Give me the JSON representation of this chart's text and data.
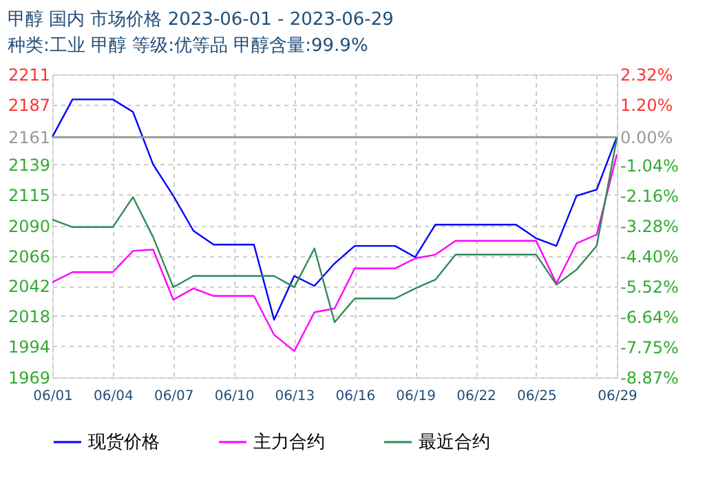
{
  "chart_data": {
    "type": "line",
    "title": "甲醇 国内 市场价格 2023-06-01 - 2023-06-29",
    "subtitle": "种类:工业 甲醇 等级:优等品 甲醇含量:99.9%",
    "x": [
      "2023-06-01",
      "2023-06-02",
      "2023-06-03",
      "2023-06-04",
      "2023-06-05",
      "2023-06-06",
      "2023-06-07",
      "2023-06-08",
      "2023-06-09",
      "2023-06-10",
      "2023-06-11",
      "2023-06-12",
      "2023-06-13",
      "2023-06-14",
      "2023-06-15",
      "2023-06-16",
      "2023-06-17",
      "2023-06-18",
      "2023-06-19",
      "2023-06-20",
      "2023-06-21",
      "2023-06-22",
      "2023-06-23",
      "2023-06-24",
      "2023-06-25",
      "2023-06-26",
      "2023-06-27",
      "2023-06-28",
      "2023-06-29"
    ],
    "series": [
      {
        "name": "现货价格",
        "color": "#0000ff",
        "values": [
          2161,
          2191,
          2191,
          2191,
          2181,
          2139,
          2114,
          2086,
          2075,
          2075,
          2075,
          2015,
          2050,
          2042,
          2060,
          2074,
          2074,
          2074,
          2065,
          2091,
          2091,
          2091,
          2091,
          2091,
          2080,
          2074,
          2114,
          2119,
          2161
        ]
      },
      {
        "name": "主力合约",
        "color": "#ff00ff",
        "values": [
          2045,
          2053,
          2053,
          2053,
          2070,
          2071,
          2031,
          2040,
          2034,
          2034,
          2034,
          2003,
          1990,
          2021,
          2024,
          2056,
          2056,
          2056,
          2064,
          2067,
          2078,
          2078,
          2078,
          2078,
          2078,
          2044,
          2076,
          2083,
          2147
        ]
      },
      {
        "name": "最近合约",
        "color": "#2e8b57",
        "values": [
          2095,
          2089,
          2089,
          2089,
          2113,
          2081,
          2041,
          2050,
          2050,
          2050,
          2050,
          2050,
          2041,
          2072,
          2013,
          2032,
          2032,
          2032,
          2040,
          2047,
          2067,
          2067,
          2067,
          2067,
          2067,
          2043,
          2055,
          2074,
          2160
        ]
      }
    ],
    "xlim": [
      "2023-06-01",
      "2023-06-29"
    ],
    "xticks": [
      {
        "value": "2023-06-01",
        "label": "06/01"
      },
      {
        "value": "2023-06-04",
        "label": "06/04"
      },
      {
        "value": "2023-06-07",
        "label": "06/07"
      },
      {
        "value": "2023-06-10",
        "label": "06/10"
      },
      {
        "value": "2023-06-13",
        "label": "06/13"
      },
      {
        "value": "2023-06-16",
        "label": "06/16"
      },
      {
        "value": "2023-06-19",
        "label": "06/19"
      },
      {
        "value": "2023-06-22",
        "label": "06/22"
      },
      {
        "value": "2023-06-25",
        "label": "06/25"
      },
      {
        "value": "2023-06-28",
        "label": null
      },
      {
        "value": "2023-06-29",
        "label": "06/29"
      }
    ],
    "ylim": [
      1969,
      2211
    ],
    "yticks": [
      1969,
      1994,
      2018,
      2042,
      2066,
      2090,
      2115,
      2139,
      2161,
      2187,
      2211
    ],
    "y2lim": [
      -8.87,
      2.32
    ],
    "y2ticks": [
      {
        "value": -8.87,
        "label": "-8.87%"
      },
      {
        "value": -7.75,
        "label": "-7.75%"
      },
      {
        "value": -6.64,
        "label": "-6.64%"
      },
      {
        "value": -5.52,
        "label": "-5.52%"
      },
      {
        "value": -4.4,
        "label": "-4.40%"
      },
      {
        "value": -3.28,
        "label": "-3.28%"
      },
      {
        "value": -2.16,
        "label": "-2.16%"
      },
      {
        "value": -1.04,
        "label": "-1.04%"
      },
      {
        "value": 0,
        "label": "0.00%"
      },
      {
        "value": 1.2,
        "label": "1.20%"
      },
      {
        "value": 2.32,
        "label": "2.32%"
      }
    ],
    "ref_lines": [
      {
        "axis": "y2",
        "value": 0,
        "color": "#999999"
      }
    ],
    "grid": true,
    "legend": "bottom",
    "marker": "none",
    "line_style": "solid"
  }
}
